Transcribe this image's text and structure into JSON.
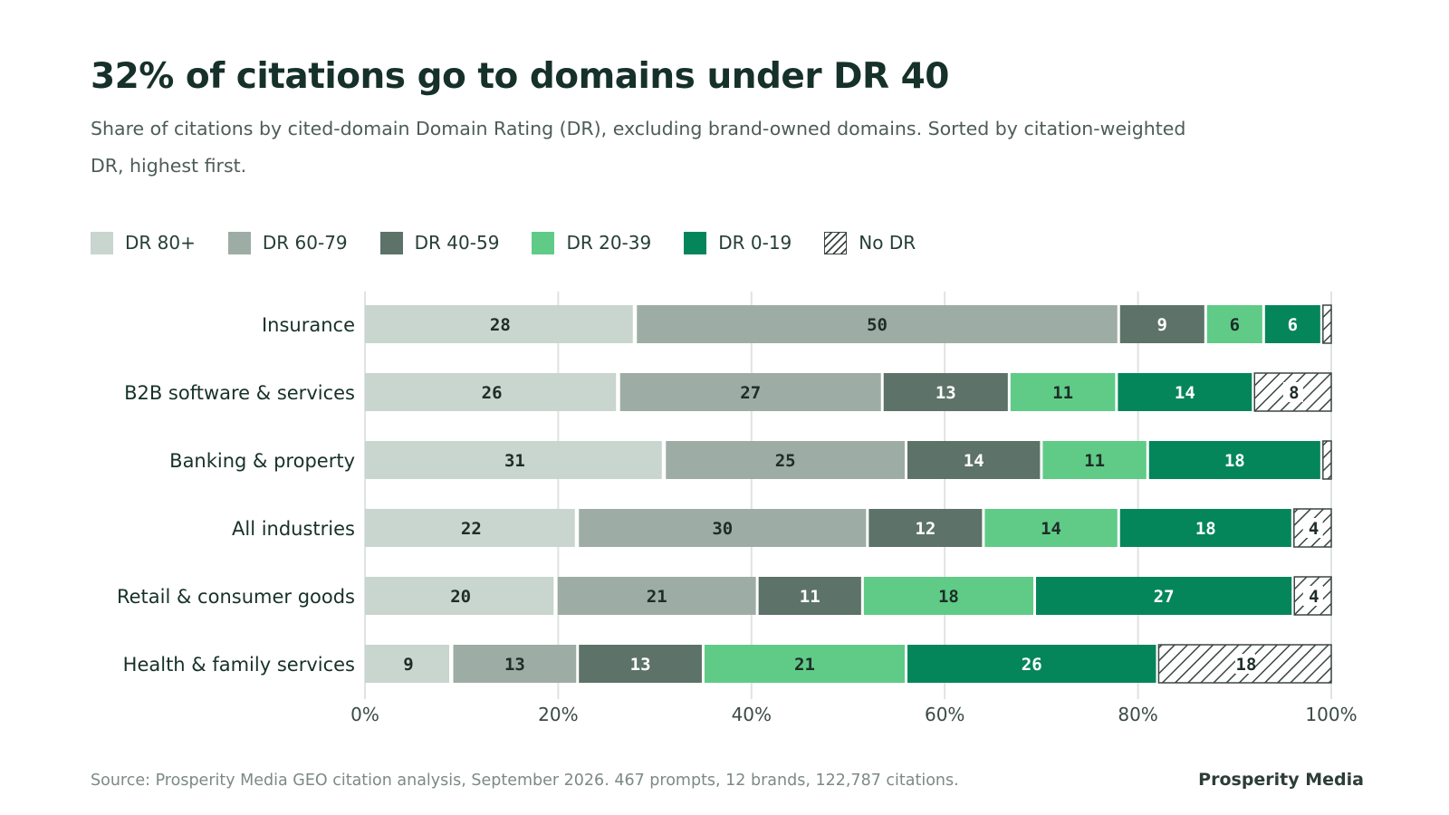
{
  "header": {
    "title": "32% of citations go to domains under DR 40",
    "subtitle": "Share of citations by cited-domain Domain Rating (DR), excluding brand-owned domains. Sorted by citation-weighted DR, highest first."
  },
  "footer": {
    "source": "Source: Prosperity Media GEO citation analysis, September 2026. 467 prompts, 12 brands, 122,787 citations.",
    "brand": "Prosperity Media"
  },
  "colors": {
    "dr80": "#c9d5cf",
    "dr60": "#9dada5",
    "dr40": "#5d7269",
    "dr20": "#5fcb87",
    "dr0": "#05865a",
    "nodr_hatch": "#3a4642",
    "grid": "#dfe3e1",
    "text": "#173128"
  },
  "chart_data": {
    "type": "bar",
    "orientation": "horizontal",
    "stacked": true,
    "categories": [
      "Insurance",
      "B2B software & services",
      "Banking & property",
      "All industries",
      "Retail & consumer goods",
      "Health & family services"
    ],
    "series": [
      {
        "name": "DR 80+",
        "color": "#c9d5cf",
        "values": [
          28,
          26,
          31,
          22,
          20,
          9
        ]
      },
      {
        "name": "DR 60-79",
        "color": "#9dada5",
        "values": [
          50,
          27,
          25,
          30,
          21,
          13
        ]
      },
      {
        "name": "DR 40-59",
        "color": "#5d7269",
        "values": [
          9,
          13,
          14,
          12,
          11,
          13
        ]
      },
      {
        "name": "DR 20-39",
        "color": "#5fcb87",
        "values": [
          6,
          11,
          11,
          14,
          18,
          21
        ]
      },
      {
        "name": "DR 0-19",
        "color": "#05865a",
        "values": [
          6,
          14,
          18,
          18,
          27,
          26
        ]
      },
      {
        "name": "No DR",
        "color": "hatch",
        "values": [
          1,
          8,
          1,
          4,
          4,
          18
        ]
      }
    ],
    "xlim": [
      0,
      100
    ],
    "x_ticks": [
      "0%",
      "20%",
      "40%",
      "60%",
      "80%",
      "100%"
    ],
    "grid": true,
    "legend_position": "top-left"
  }
}
